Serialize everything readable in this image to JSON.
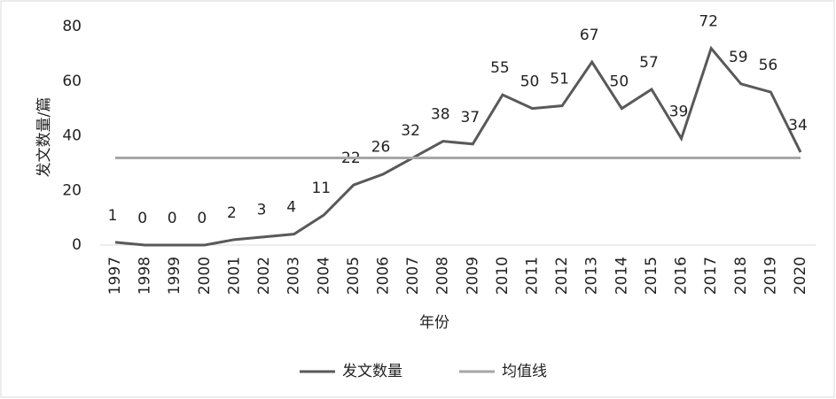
{
  "chart_data": {
    "type": "line",
    "y_label": "发文数量/篇",
    "x_label": "年份",
    "categories": [
      "1997",
      "1998",
      "1999",
      "2000",
      "2001",
      "2002",
      "2003",
      "2004",
      "2005",
      "2006",
      "2007",
      "2008",
      "2009",
      "2010",
      "2011",
      "2012",
      "2013",
      "2014",
      "2015",
      "2016",
      "2017",
      "2018",
      "2019",
      "2020"
    ],
    "series": [
      {
        "name": "发文数量",
        "color": "#595959",
        "data_labels": true,
        "values": [
          1,
          0,
          0,
          0,
          2,
          3,
          4,
          11,
          22,
          26,
          32,
          38,
          37,
          55,
          50,
          51,
          67,
          50,
          57,
          39,
          72,
          59,
          56,
          34
        ]
      },
      {
        "name": "均值线",
        "color": "#a6a6a6",
        "data_labels": false,
        "values": [
          31.9,
          31.9,
          31.9,
          31.9,
          31.9,
          31.9,
          31.9,
          31.9,
          31.9,
          31.9,
          31.9,
          31.9,
          31.9,
          31.9,
          31.9,
          31.9,
          31.9,
          31.9,
          31.9,
          31.9,
          31.9,
          31.9,
          31.9,
          31.9
        ]
      }
    ],
    "ylim": [
      0,
      80
    ],
    "yticks": [
      0,
      20,
      40,
      60,
      80
    ],
    "grid": false,
    "legend": "bottom"
  }
}
